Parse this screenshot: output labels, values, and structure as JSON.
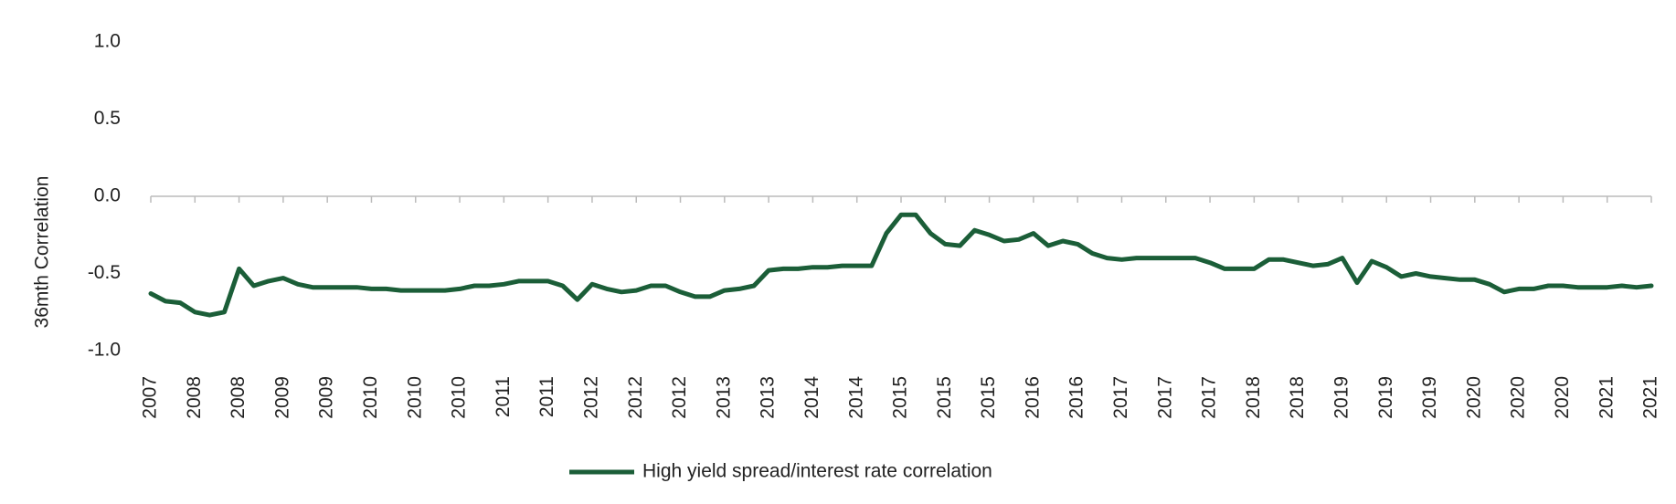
{
  "chart_data": {
    "type": "line",
    "y_label": "36mth Correlation",
    "categories": [
      "2007",
      null,
      null,
      "2008",
      null,
      null,
      "2008",
      null,
      null,
      "2009",
      null,
      null,
      "2009",
      null,
      null,
      "2010",
      null,
      null,
      "2010",
      null,
      null,
      "2010",
      null,
      null,
      "2011",
      null,
      null,
      "2011",
      null,
      null,
      "2012",
      null,
      null,
      "2012",
      null,
      null,
      "2012",
      null,
      null,
      "2013",
      null,
      null,
      "2013",
      null,
      null,
      "2014",
      null,
      null,
      "2014",
      null,
      null,
      "2015",
      null,
      null,
      "2015",
      null,
      null,
      "2015",
      null,
      null,
      "2016",
      null,
      null,
      "2016",
      null,
      null,
      "2017",
      null,
      null,
      "2017",
      null,
      null,
      "2017",
      null,
      null,
      "2018",
      null,
      null,
      "2018",
      null,
      null,
      "2019",
      null,
      null,
      "2019",
      null,
      null,
      "2019",
      null,
      null,
      "2020",
      null,
      null,
      "2020",
      null,
      null,
      "2020",
      null,
      null,
      "2021",
      null,
      null,
      "2021"
    ],
    "series": [
      {
        "name": "High yield spread/interest rate correlation",
        "color": "#1b5e38",
        "values": [
          -0.63,
          -0.68,
          -0.69,
          -0.75,
          -0.77,
          -0.75,
          -0.47,
          -0.58,
          -0.55,
          -0.53,
          -0.57,
          -0.59,
          -0.59,
          -0.59,
          -0.59,
          -0.6,
          -0.6,
          -0.61,
          -0.61,
          -0.61,
          -0.61,
          -0.6,
          -0.58,
          -0.58,
          -0.57,
          -0.55,
          -0.55,
          -0.55,
          -0.58,
          -0.67,
          -0.57,
          -0.6,
          -0.62,
          -0.61,
          -0.58,
          -0.58,
          -0.62,
          -0.65,
          -0.65,
          -0.61,
          -0.6,
          -0.58,
          -0.48,
          -0.47,
          -0.47,
          -0.46,
          -0.46,
          -0.45,
          -0.45,
          -0.45,
          -0.24,
          -0.12,
          -0.12,
          -0.24,
          -0.31,
          -0.32,
          -0.22,
          -0.25,
          -0.29,
          -0.28,
          -0.24,
          -0.32,
          -0.29,
          -0.31,
          -0.37,
          -0.4,
          -0.41,
          -0.4,
          -0.4,
          -0.4,
          -0.4,
          -0.4,
          -0.43,
          -0.47,
          -0.47,
          -0.47,
          -0.41,
          -0.41,
          -0.43,
          -0.45,
          -0.44,
          -0.4,
          -0.56,
          -0.42,
          -0.46,
          -0.52,
          -0.5,
          -0.52,
          -0.53,
          -0.54,
          -0.54,
          -0.57,
          -0.62,
          -0.6,
          -0.6,
          -0.58,
          -0.58,
          -0.59,
          -0.59,
          -0.59,
          -0.58,
          -0.59,
          -0.58
        ]
      }
    ],
    "ylim": [
      -1.0,
      1.0
    ],
    "yticks": [
      {
        "value": -1.0,
        "label": "-1.0"
      },
      {
        "value": -0.5,
        "label": "-0.5"
      },
      {
        "value": 0.0,
        "label": "0.0"
      },
      {
        "value": 0.5,
        "label": "0.5"
      },
      {
        "value": 1.0,
        "label": "1.0"
      }
    ],
    "grid": false,
    "legend": "bottom"
  }
}
